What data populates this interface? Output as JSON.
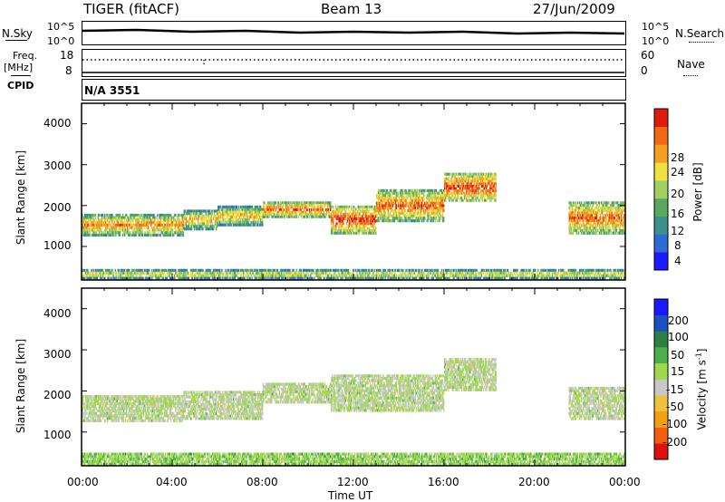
{
  "header": {
    "radar": "TIGER (fitACF)",
    "beam": "Beam 13",
    "date": "27/Jun/2009"
  },
  "top_panels": {
    "nsky_label": "N.Sky",
    "nsky_ticks": [
      "10^5",
      "10^0"
    ],
    "nsearch_label": "N.Search",
    "nsearch_ticks": [
      "10^5",
      "10^0"
    ],
    "freq_label": "Freq.",
    "freq_unit": "[MHz]",
    "freq_ticks": [
      "18",
      "8"
    ],
    "nave_label": "Nave",
    "nave_ticks": [
      "60",
      "0"
    ],
    "cpid_label": "CPID",
    "cpid_value": "N/A 3551"
  },
  "x_axis": {
    "label": "Time UT",
    "ticks": [
      "00:00",
      "04:00",
      "08:00",
      "12:00",
      "16:00",
      "20:00",
      "00:00"
    ]
  },
  "colors": {
    "power": [
      "#1a1aff",
      "#2e6bd6",
      "#3c8f8c",
      "#5aa760",
      "#9fd060",
      "#f0e040",
      "#f5a020",
      "#f06a14",
      "#e11a0e"
    ],
    "velocity": [
      "#e01010",
      "#f06010",
      "#f0a010",
      "#f0c040",
      "#c8c8c8",
      "#9ed84c",
      "#4caf4c",
      "#2d7f46",
      "#1c4fbf",
      "#1919ff"
    ]
  },
  "chart_data": [
    {
      "type": "heatmap",
      "name": "power",
      "ylabel": "Slant Range [km]",
      "ylim": [
        180,
        4500
      ],
      "yticks": [
        "4000",
        "3000",
        "2000",
        "1000"
      ],
      "xlim_hours": [
        0,
        24
      ],
      "colorbar": {
        "label": "Power [dB]",
        "ticks": [
          "28",
          "24",
          "20",
          "16",
          "12",
          "8",
          "4"
        ],
        "range": [
          0,
          30
        ]
      },
      "bands": [
        {
          "t0": 0,
          "t1": 4.5,
          "r0": 1250,
          "r1": 1800,
          "v": 18
        },
        {
          "t0": 4.5,
          "t1": 6,
          "r0": 1400,
          "r1": 1900,
          "v": 16
        },
        {
          "t0": 6,
          "t1": 8,
          "r0": 1500,
          "r1": 2000,
          "v": 16
        },
        {
          "t0": 8,
          "t1": 11,
          "r0": 1700,
          "r1": 2100,
          "v": 20
        },
        {
          "t0": 11,
          "t1": 13,
          "r0": 1300,
          "r1": 2000,
          "v": 22
        },
        {
          "t0": 13,
          "t1": 16,
          "r0": 1600,
          "r1": 2400,
          "v": 20
        },
        {
          "t0": 16,
          "t1": 18.3,
          "r0": 2100,
          "r1": 2800,
          "v": 22
        },
        {
          "t0": 21.5,
          "t1": 24,
          "r0": 1300,
          "r1": 2100,
          "v": 20
        },
        {
          "t0": 0,
          "t1": 24,
          "r0": 190,
          "r1": 450,
          "v": 14
        }
      ]
    },
    {
      "type": "heatmap",
      "name": "velocity",
      "ylabel": "Slant Range [km]",
      "ylim": [
        180,
        4500
      ],
      "yticks": [
        "4000",
        "3000",
        "2000",
        "1000"
      ],
      "xlim_hours": [
        0,
        24
      ],
      "colorbar": {
        "label": "Velocity [m s",
        "label_sup": "-1",
        "label_end": "]",
        "ticks": [
          "200",
          "100",
          "50",
          "15",
          "-15",
          "-50",
          "-100",
          "-200"
        ],
        "range": [
          -250,
          250
        ]
      },
      "bands": [
        {
          "t0": 0,
          "t1": 4.5,
          "r0": 1250,
          "r1": 1900,
          "v": 0
        },
        {
          "t0": 4.5,
          "t1": 8,
          "r0": 1300,
          "r1": 2000,
          "v": 0
        },
        {
          "t0": 8,
          "t1": 11,
          "r0": 1700,
          "r1": 2200,
          "v": 0
        },
        {
          "t0": 11,
          "t1": 16,
          "r0": 1500,
          "r1": 2400,
          "v": 0
        },
        {
          "t0": 16,
          "t1": 18.3,
          "r0": 2000,
          "r1": 2800,
          "v": 0
        },
        {
          "t0": 21.5,
          "t1": 24,
          "r0": 1300,
          "r1": 2100,
          "v": 0
        },
        {
          "t0": 0,
          "t1": 24,
          "r0": 190,
          "r1": 500,
          "v": 40
        }
      ]
    }
  ]
}
